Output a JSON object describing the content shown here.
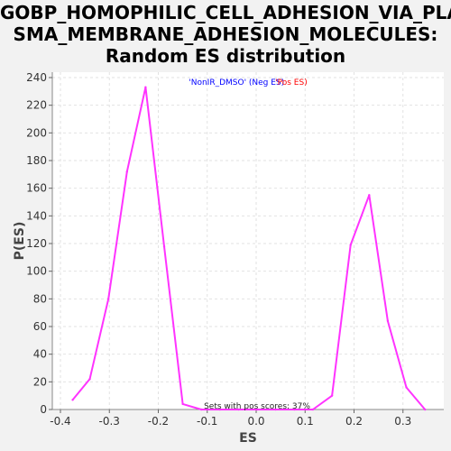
{
  "title_lines": [
    "GOBP_HOMOPHILIC_CELL_ADHESION_VIA_PLA",
    "SMA_MEMBRANE_ADHESION_MOLECULES:",
    "Random ES distribution"
  ],
  "chart_data": {
    "type": "line",
    "xlabel": "ES",
    "ylabel": "P(ES)",
    "xlim": [
      -0.4,
      0.4
    ],
    "ylim": [
      0,
      240
    ],
    "xticks": [
      -0.4,
      -0.3,
      -0.2,
      -0.1,
      0.0,
      0.1,
      0.2,
      0.3
    ],
    "xtick_labels": [
      "-0.4",
      "-0.3",
      "-0.2",
      "-0.1",
      "0.0",
      "0.1",
      "0.2",
      "0.3"
    ],
    "yticks": [
      0,
      20,
      40,
      60,
      80,
      100,
      120,
      140,
      160,
      180,
      200,
      220,
      240
    ],
    "grid": true,
    "legend": {
      "placement": "top-center",
      "neg_label": "'NonIR_DMSO' (Neg ES)",
      "pos_label": "'Pos ES)",
      "neg_color": "#0000ff",
      "pos_color": "#ff0000"
    },
    "annotation": "Sets with pos scores: 37%",
    "series": [
      {
        "color": "#ff33ff",
        "x": [
          -0.375,
          -0.34,
          -0.302,
          -0.264,
          -0.226,
          -0.188,
          -0.15,
          -0.112,
          -0.074,
          -0.036,
          0.002,
          0.04,
          0.078,
          0.116,
          0.155,
          0.193,
          0.231,
          0.269,
          0.307,
          0.345
        ],
        "y": [
          7,
          22,
          80,
          172,
          233,
          118,
          4,
          0,
          0,
          0,
          0,
          0,
          0,
          0,
          10,
          119,
          155,
          64,
          16,
          0
        ]
      }
    ]
  }
}
